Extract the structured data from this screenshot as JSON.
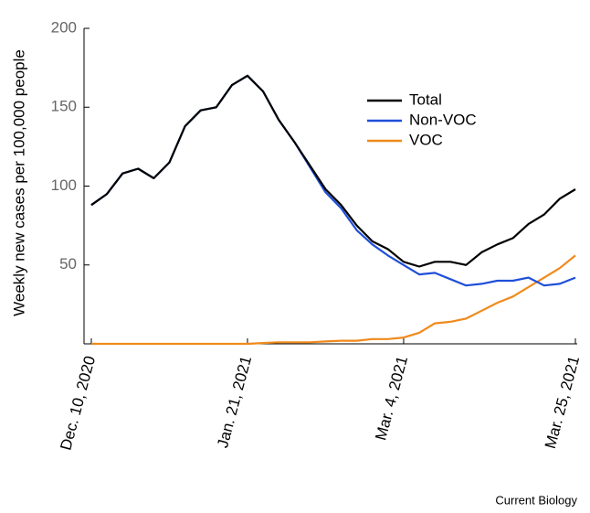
{
  "chart_data": {
    "type": "line",
    "y_label": "Weekly new cases per 100,000 people",
    "source": "Current Biology",
    "categories": [
      "Dec. 10, 2020",
      null,
      null,
      null,
      null,
      null,
      null,
      null,
      null,
      null,
      "Jan. 21, 2021",
      null,
      null,
      null,
      null,
      null,
      null,
      null,
      null,
      null,
      "Mar.  4, 2021",
      null,
      null,
      null,
      null,
      null,
      null,
      null,
      null,
      null,
      null,
      "Mar. 25, 2021"
    ],
    "series": [
      {
        "name": "Total",
        "color": "#000000",
        "values": [
          88,
          95,
          108,
          111,
          105,
          115,
          138,
          148,
          150,
          164,
          170,
          160,
          142,
          128,
          113,
          98,
          88,
          75,
          65,
          60,
          52,
          49,
          52,
          52,
          50,
          58,
          63,
          67,
          76,
          82,
          92,
          98
        ]
      },
      {
        "name": "Non-VOC",
        "color": "#1f4fd8",
        "values": [
          88,
          95,
          108,
          111,
          105,
          115,
          138,
          148,
          150,
          164,
          170,
          160,
          142,
          128,
          112,
          96,
          86,
          72,
          63,
          56,
          50,
          44,
          45,
          41,
          37,
          38,
          40,
          40,
          42,
          37,
          38,
          42
        ]
      },
      {
        "name": "VOC",
        "color": "#f08a1c",
        "values": [
          0,
          0,
          0,
          0,
          0,
          0,
          0,
          0,
          0,
          0,
          0,
          0.5,
          1,
          1,
          1,
          1.5,
          2,
          2,
          3,
          3,
          4,
          7,
          13,
          14,
          16,
          21,
          26,
          30,
          36,
          42,
          48,
          56
        ]
      }
    ],
    "ylim": [
      0,
      200
    ],
    "yticks": [
      50,
      100,
      150,
      200
    ],
    "legend": "upper right"
  }
}
